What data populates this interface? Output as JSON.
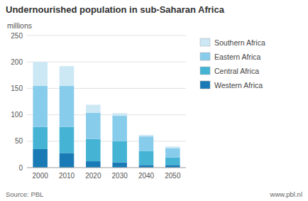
{
  "chart_data": {
    "type": "bar",
    "stacked": true,
    "title": "Undernourished population in sub-Saharan Africa",
    "subtitle": "millions",
    "annotations": [
      "Source: PBL",
      "www.pbl.nl"
    ],
    "categories": [
      "2000",
      "2010",
      "2020",
      "2030",
      "2040",
      "2050"
    ],
    "series": [
      {
        "name": "Western Africa",
        "color": "#1a7ab5",
        "values": [
          35,
          27,
          12,
          10,
          5,
          5
        ]
      },
      {
        "name": "Central Africa",
        "color": "#45b3d4",
        "values": [
          42,
          50,
          42,
          40,
          26,
          14
        ]
      },
      {
        "name": "Eastern Africa",
        "color": "#88ccec",
        "values": [
          78,
          78,
          50,
          48,
          28,
          18
        ]
      },
      {
        "name": "Southern Africa",
        "color": "#cce8f5",
        "values": [
          45,
          37,
          15,
          5,
          3,
          3
        ]
      }
    ],
    "ylim": [
      0,
      250
    ],
    "yticks": [
      0,
      50,
      100,
      150,
      200,
      250
    ],
    "grid": true,
    "legend": "right"
  }
}
